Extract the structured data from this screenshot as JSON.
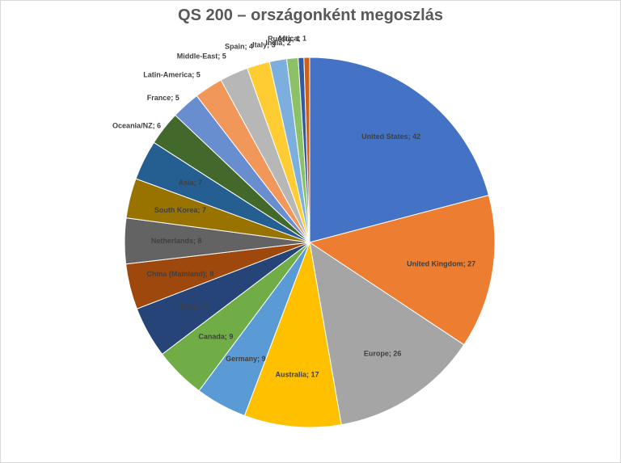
{
  "chart_data": {
    "type": "pie",
    "title": "QS 200 – országonként megoszlás",
    "slices": [
      {
        "label": "United States",
        "value": 42,
        "color": "#4472C4"
      },
      {
        "label": "United Kingdom",
        "value": 27,
        "color": "#ED7D31"
      },
      {
        "label": "Europe",
        "value": 26,
        "color": "#A5A5A5"
      },
      {
        "label": "Australia",
        "value": 17,
        "color": "#FFC000"
      },
      {
        "label": "Germany",
        "value": 9,
        "color": "#5B9BD5"
      },
      {
        "label": "Canada",
        "value": 9,
        "color": "#70AD47"
      },
      {
        "label": "Japan",
        "value": 9,
        "color": "#264478"
      },
      {
        "label": "China (Mainland)",
        "value": 8,
        "color": "#9E480E"
      },
      {
        "label": "Netherlands",
        "value": 8,
        "color": "#636363"
      },
      {
        "label": "South Korea",
        "value": 7,
        "color": "#997300"
      },
      {
        "label": "Asia",
        "value": 7,
        "color": "#255E91"
      },
      {
        "label": "Oceania/NZ",
        "value": 6,
        "color": "#43682B"
      },
      {
        "label": "France",
        "value": 5,
        "color": "#698ED0"
      },
      {
        "label": "Latin-America",
        "value": 5,
        "color": "#F1975A"
      },
      {
        "label": "Middle-East",
        "value": 5,
        "color": "#B7B7B7"
      },
      {
        "label": "Spain",
        "value": 4,
        "color": "#FFCD33"
      },
      {
        "label": "Italy",
        "value": 3,
        "color": "#7CAFDD"
      },
      {
        "label": "India",
        "value": 2,
        "color": "#8CC168"
      },
      {
        "label": "Russia",
        "value": 1,
        "color": "#335AA1"
      },
      {
        "label": "Africa",
        "value": 1,
        "color": "#D26012"
      }
    ],
    "legend": "none",
    "data_labels": "label; value"
  }
}
